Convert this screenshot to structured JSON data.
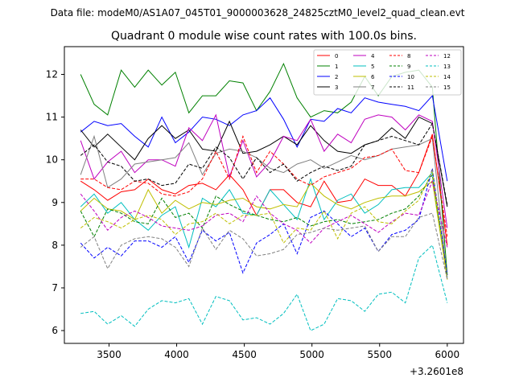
{
  "chart_data": {
    "type": "line",
    "suptitle": "Data file: modeM0/AS1A07_045T01_9000003628_24825cztM0_level2_quad_clean.evt",
    "title": "Quadrant 0 module wise count rates with 100.0s bins.",
    "xlabel": "",
    "ylabel": "",
    "x_offset_label": "+3.2601e8",
    "xlim": [
      3170,
      6120
    ],
    "ylim": [
      5.7,
      12.65
    ],
    "xticks": [
      3500,
      4000,
      4500,
      5000,
      5500,
      6000
    ],
    "yticks": [
      6,
      7,
      8,
      9,
      10,
      11,
      12
    ],
    "x": [
      3290,
      3390,
      3490,
      3590,
      3690,
      3790,
      3890,
      3990,
      4090,
      4190,
      4290,
      4390,
      4490,
      4590,
      4690,
      4790,
      4890,
      4990,
      5090,
      5190,
      5290,
      5390,
      5490,
      5590,
      5690,
      5790,
      5890,
      6000
    ],
    "legend_location": "top-right",
    "series": [
      {
        "name": "0",
        "color": "#ff0000",
        "dash": "solid",
        "values": [
          9.5,
          9.3,
          9.05,
          9.25,
          9.3,
          9.55,
          9.3,
          9.2,
          9.4,
          9.45,
          9.3,
          9.65,
          9.3,
          8.7,
          9.3,
          9.3,
          9.0,
          8.9,
          9.5,
          9.0,
          9.05,
          9.55,
          9.4,
          9.4,
          9.15,
          9.7,
          10.6,
          8.0
        ]
      },
      {
        "name": "1",
        "color": "#008000",
        "dash": "solid",
        "values": [
          12.0,
          11.3,
          11.05,
          12.1,
          11.7,
          12.1,
          11.75,
          12.05,
          11.1,
          11.5,
          11.5,
          11.85,
          11.8,
          11.15,
          11.6,
          12.25,
          11.45,
          11.0,
          11.15,
          11.1,
          11.35,
          11.95,
          11.5,
          11.95,
          12.05,
          12.1,
          11.7,
          7.3
        ]
      },
      {
        "name": "2",
        "color": "#0000ff",
        "dash": "solid",
        "values": [
          10.65,
          10.9,
          10.8,
          10.85,
          10.55,
          10.3,
          11.0,
          10.4,
          10.65,
          11.0,
          10.95,
          10.8,
          11.05,
          11.15,
          11.45,
          10.95,
          10.3,
          10.95,
          10.9,
          11.2,
          11.1,
          11.45,
          11.35,
          11.3,
          11.25,
          11.15,
          11.5,
          9.5
        ]
      },
      {
        "name": "3",
        "color": "#000000",
        "dash": "solid",
        "values": [
          10.7,
          10.3,
          10.6,
          10.3,
          10.0,
          10.5,
          10.8,
          10.5,
          10.7,
          10.25,
          10.2,
          10.9,
          10.15,
          10.2,
          10.35,
          10.55,
          10.35,
          10.8,
          10.45,
          10.2,
          10.15,
          10.35,
          10.45,
          10.75,
          10.5,
          11.0,
          10.85,
          8.9
        ]
      },
      {
        "name": "4",
        "color": "#bf00bf",
        "dash": "solid",
        "values": [
          10.45,
          9.55,
          9.95,
          10.2,
          9.7,
          10.0,
          10.0,
          9.85,
          10.75,
          10.45,
          11.05,
          9.6,
          10.45,
          9.6,
          9.95,
          10.55,
          10.45,
          10.95,
          10.2,
          10.6,
          10.4,
          10.95,
          11.05,
          11.0,
          10.7,
          11.05,
          10.9,
          8.4
        ]
      },
      {
        "name": "5",
        "color": "#00bfbf",
        "dash": "solid",
        "values": [
          8.9,
          9.2,
          8.75,
          9.0,
          8.6,
          8.35,
          8.7,
          8.9,
          7.95,
          9.1,
          8.9,
          9.3,
          8.75,
          8.7,
          9.3,
          8.95,
          8.6,
          9.55,
          8.6,
          9.05,
          9.2,
          8.75,
          8.95,
          9.3,
          9.35,
          9.35,
          9.7,
          7.25
        ]
      },
      {
        "name": "6",
        "color": "#bfbf00",
        "dash": "solid",
        "values": [
          8.8,
          9.1,
          8.85,
          8.8,
          8.6,
          9.3,
          8.75,
          9.05,
          8.85,
          9.0,
          8.95,
          9.05,
          9.1,
          8.9,
          8.85,
          8.95,
          8.9,
          9.45,
          9.15,
          8.95,
          8.85,
          9.0,
          9.1,
          9.15,
          9.15,
          9.25,
          9.5,
          7.2
        ]
      },
      {
        "name": "7",
        "color": "#808080",
        "dash": "solid",
        "values": [
          9.65,
          10.55,
          9.35,
          9.55,
          9.9,
          9.95,
          10.0,
          10.05,
          10.4,
          9.65,
          10.15,
          10.25,
          10.2,
          10.05,
          9.8,
          9.7,
          9.9,
          10.0,
          9.8,
          9.95,
          10.1,
          10.0,
          10.1,
          10.25,
          10.3,
          10.35,
          10.5,
          7.2
        ]
      },
      {
        "name": "8",
        "color": "#ff0000",
        "dash": "dashed",
        "values": [
          9.55,
          9.55,
          9.35,
          9.3,
          9.5,
          9.45,
          9.2,
          9.15,
          9.25,
          9.55,
          10.2,
          9.55,
          10.55,
          9.7,
          10.2,
          9.9,
          9.55,
          9.4,
          9.6,
          9.7,
          9.8,
          10.05,
          10.1,
          10.25,
          9.75,
          9.7,
          10.55,
          8.2
        ]
      },
      {
        "name": "9",
        "color": "#008000",
        "dash": "dashed",
        "values": [
          8.8,
          8.2,
          8.85,
          8.75,
          8.55,
          8.5,
          9.1,
          8.65,
          8.75,
          8.4,
          9.15,
          8.95,
          8.8,
          8.7,
          8.6,
          8.55,
          8.65,
          8.45,
          8.55,
          8.6,
          8.5,
          8.55,
          8.6,
          8.75,
          8.85,
          9.15,
          9.65,
          7.25
        ]
      },
      {
        "name": "10",
        "color": "#0000ff",
        "dash": "dashed",
        "values": [
          8.05,
          7.7,
          7.95,
          7.75,
          8.1,
          8.1,
          7.95,
          8.2,
          7.6,
          8.35,
          8.1,
          8.3,
          7.35,
          8.05,
          8.25,
          8.5,
          7.8,
          8.65,
          8.8,
          8.5,
          8.2,
          8.4,
          7.85,
          8.25,
          8.35,
          8.6,
          9.8,
          7.3
        ]
      },
      {
        "name": "11",
        "color": "#000000",
        "dash": "dashed",
        "values": [
          10.1,
          10.35,
          9.95,
          9.85,
          9.5,
          9.55,
          9.4,
          9.45,
          9.9,
          9.8,
          10.3,
          10.05,
          9.55,
          10.05,
          9.7,
          9.9,
          9.5,
          9.7,
          9.85,
          9.75,
          9.85,
          10.35,
          10.45,
          10.55,
          10.45,
          10.35,
          10.85,
          8.95
        ]
      },
      {
        "name": "12",
        "color": "#bf00bf",
        "dash": "dashed",
        "values": [
          9.2,
          8.8,
          8.35,
          8.65,
          8.8,
          8.65,
          8.45,
          8.4,
          8.35,
          8.45,
          8.7,
          8.75,
          8.55,
          9.15,
          8.75,
          8.5,
          8.35,
          8.05,
          8.4,
          8.55,
          8.7,
          8.5,
          8.3,
          8.55,
          8.75,
          8.7,
          9.5,
          7.95
        ]
      },
      {
        "name": "13",
        "color": "#00bfbf",
        "dash": "dashed",
        "values": [
          6.4,
          6.45,
          6.15,
          6.35,
          6.1,
          6.5,
          6.7,
          6.65,
          6.75,
          6.15,
          6.8,
          6.7,
          6.25,
          6.3,
          6.15,
          6.4,
          6.85,
          6.0,
          6.15,
          6.75,
          6.7,
          6.45,
          6.85,
          6.9,
          6.65,
          7.7,
          8.0,
          6.65
        ]
      },
      {
        "name": "14",
        "color": "#bfbf00",
        "dash": "dashed",
        "values": [
          8.4,
          8.65,
          8.55,
          8.4,
          8.6,
          8.7,
          8.6,
          8.25,
          8.5,
          8.55,
          8.75,
          8.5,
          8.7,
          8.7,
          8.75,
          8.05,
          8.4,
          8.35,
          8.8,
          8.15,
          8.75,
          8.9,
          8.55,
          8.5,
          8.8,
          9.05,
          9.75,
          7.2
        ]
      },
      {
        "name": "15",
        "color": "#808080",
        "dash": "dashed",
        "values": [
          7.95,
          8.2,
          7.45,
          8.0,
          8.15,
          8.2,
          8.15,
          7.95,
          7.5,
          8.4,
          7.9,
          8.35,
          8.15,
          7.75,
          7.8,
          7.9,
          8.25,
          8.3,
          8.4,
          8.35,
          8.4,
          8.45,
          7.85,
          8.2,
          8.2,
          8.65,
          8.75,
          7.2
        ]
      }
    ]
  }
}
